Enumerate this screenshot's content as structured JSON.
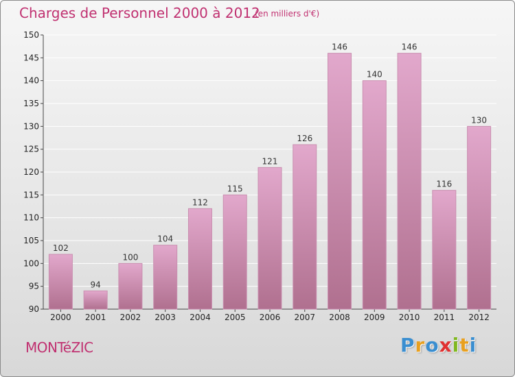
{
  "header": {
    "title": "Charges de Personnel 2000 à 2012",
    "subtitle": "(en milliers d'€)"
  },
  "footer": {
    "commune": "MONTéZIC",
    "brand": {
      "letters": [
        "P",
        "r",
        "o",
        "x",
        "i",
        "t",
        "i"
      ],
      "colors": [
        "#3a8ed0",
        "#e8a020",
        "#3a8ed0",
        "#e03030",
        "#80b820",
        "#e8a020",
        "#3a8ed0"
      ]
    }
  },
  "chart_data": {
    "type": "bar",
    "title": "Charges de Personnel 2000 à 2012",
    "subtitle": "(en milliers d'€)",
    "categories": [
      "2000",
      "2001",
      "2002",
      "2003",
      "2004",
      "2005",
      "2006",
      "2007",
      "2008",
      "2009",
      "2010",
      "2011",
      "2012"
    ],
    "values": [
      102,
      94,
      100,
      104,
      112,
      115,
      121,
      126,
      146,
      140,
      146,
      116,
      130
    ],
    "ylim": [
      90,
      150
    ],
    "yticks": [
      90,
      95,
      100,
      105,
      110,
      115,
      120,
      125,
      130,
      135,
      140,
      145,
      150
    ],
    "grid": true,
    "colors": {
      "bar_top": "#e2a8cc",
      "bar_bottom": "#b0708f",
      "grid": "#ffffff"
    }
  }
}
